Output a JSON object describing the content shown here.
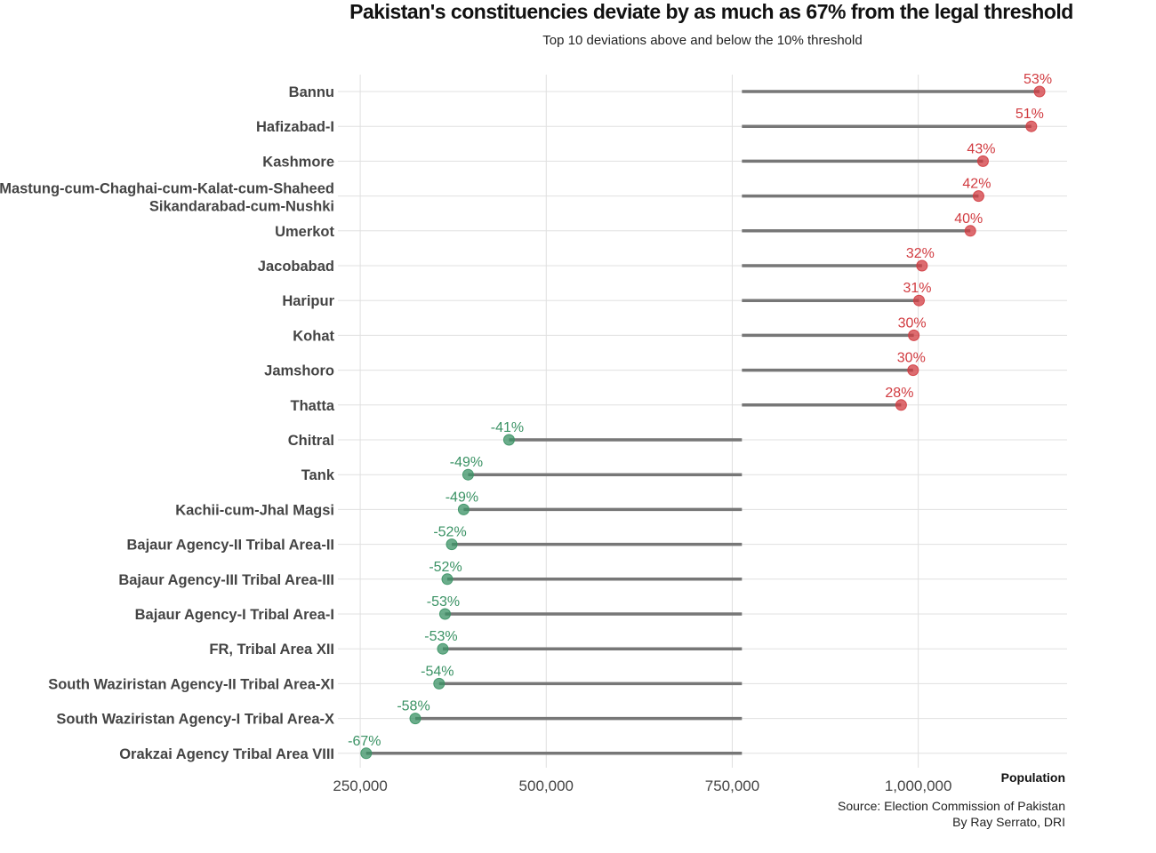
{
  "colors": {
    "above": "#d13b40",
    "below": "#3a9264",
    "segment": "#777777",
    "grid": "#e0e0e0"
  },
  "chart_data": {
    "type": "lollipop",
    "title": "Pakistan's constituencies deviate by as much as 67% from the legal threshold",
    "subtitle": "Top 10 deviations above and below the 10% threshold",
    "xlabel": "Population",
    "ylabel": "",
    "xlim": [
      220000,
      1200000
    ],
    "xticks": [
      250000,
      500000,
      750000,
      1000000
    ],
    "xtick_labels": [
      "250,000",
      "500,000",
      "750,000",
      "1,000,000"
    ],
    "baseline": 763000,
    "grid": true,
    "caption_lines": [
      "Source: Election Commission of Pakistan",
      "By Ray Serrato, DRI"
    ],
    "points": [
      {
        "name": [
          "Bannu"
        ],
        "value": 1163000,
        "label": "53%",
        "group": "above"
      },
      {
        "name": [
          "Hafizabad-I"
        ],
        "value": 1152000,
        "label": "51%",
        "group": "above"
      },
      {
        "name": [
          "Kashmore"
        ],
        "value": 1087000,
        "label": "43%",
        "group": "above"
      },
      {
        "name": [
          "Mastung-cum-Chaghai-cum-Kalat-cum-Shaheed",
          "Sikandarabad-cum-Nushki"
        ],
        "value": 1081000,
        "label": "42%",
        "group": "above"
      },
      {
        "name": [
          "Umerkot"
        ],
        "value": 1070000,
        "label": "40%",
        "group": "above"
      },
      {
        "name": [
          "Jacobabad"
        ],
        "value": 1005000,
        "label": "32%",
        "group": "above"
      },
      {
        "name": [
          "Haripur"
        ],
        "value": 1001000,
        "label": "31%",
        "group": "above"
      },
      {
        "name": [
          "Kohat"
        ],
        "value": 994000,
        "label": "30%",
        "group": "above"
      },
      {
        "name": [
          "Jamshoro"
        ],
        "value": 993000,
        "label": "30%",
        "group": "above"
      },
      {
        "name": [
          "Thatta"
        ],
        "value": 977000,
        "label": "28%",
        "group": "above"
      },
      {
        "name": [
          "Chitral"
        ],
        "value": 450000,
        "label": "-41%",
        "group": "below"
      },
      {
        "name": [
          "Tank"
        ],
        "value": 395000,
        "label": "-49%",
        "group": "below"
      },
      {
        "name": [
          "Kachii-cum-Jhal Magsi"
        ],
        "value": 389000,
        "label": "-49%",
        "group": "below"
      },
      {
        "name": [
          "Bajaur Agency-II Tribal Area-II"
        ],
        "value": 373000,
        "label": "-52%",
        "group": "below"
      },
      {
        "name": [
          "Bajaur Agency-III Tribal Area-III"
        ],
        "value": 367000,
        "label": "-52%",
        "group": "below"
      },
      {
        "name": [
          "Bajaur Agency-I Tribal Area-I"
        ],
        "value": 364000,
        "label": "-53%",
        "group": "below"
      },
      {
        "name": [
          "FR, Tribal Area XII"
        ],
        "value": 361000,
        "label": "-53%",
        "group": "below"
      },
      {
        "name": [
          "South Waziristan Agency-II Tribal Area-XI"
        ],
        "value": 356000,
        "label": "-54%",
        "group": "below"
      },
      {
        "name": [
          "South Waziristan Agency-I Tribal Area-X"
        ],
        "value": 324000,
        "label": "-58%",
        "group": "below"
      },
      {
        "name": [
          "Orakzai Agency Tribal Area VIII"
        ],
        "value": 258000,
        "label": "-67%",
        "group": "below"
      }
    ]
  }
}
